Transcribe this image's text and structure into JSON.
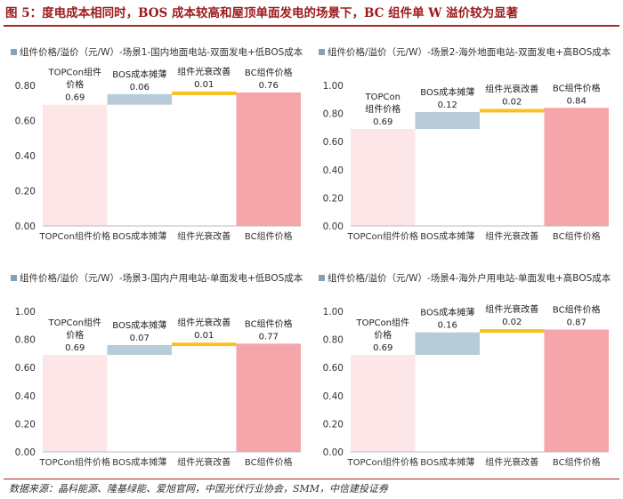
{
  "figure": {
    "title": "图 5：度电成本相同时，BOS 成本较高和屋顶单面发电的场景下，BC 组件单 W 溢价较为显著",
    "source": "数据来源：晶科能源、隆基绿能、爱旭官网，中国光伏行业协会，SMM，中信建投证券"
  },
  "colors": {
    "title_red": "#9b1b1b",
    "topcon_bar": "#fde6e8",
    "bos_bar": "#b7cbd8",
    "degradation_bar": "#f8c21e",
    "bc_bar": "#f6a6ab",
    "legend_marker": "#7fa3bd",
    "grid": "#dddddd"
  },
  "chart_data": [
    {
      "type": "bar",
      "subtype": "waterfall",
      "legend": "组件价格/溢价（元/W）-场景1-国内地面电站-双面发电+低BOS成本",
      "categories": [
        "TOPCon组件价格",
        "BOS成本摊薄",
        "组件光衰改善",
        "BC组件价格"
      ],
      "values": [
        0.69,
        0.06,
        0.01,
        0.76
      ],
      "bar_labels": [
        "TOPCon组件\n价格",
        "BOS成本摊薄",
        "组件光衰改善",
        "BC组件价格"
      ],
      "value_labels": [
        "0.69",
        "0.06",
        "0.01",
        "0.76"
      ],
      "ylim": [
        0,
        0.8
      ],
      "yticks": [
        "0.00",
        "0.20",
        "0.40",
        "0.60",
        "0.80"
      ],
      "grid": false
    },
    {
      "type": "bar",
      "subtype": "waterfall",
      "legend": "组件价格/溢价（元/W）-场景2-海外地面电站-双面发电+高BOS成本",
      "categories": [
        "TOPCon组件价格",
        "BOS成本摊薄",
        "组件光衰改善",
        "BC组件价格"
      ],
      "values": [
        0.69,
        0.12,
        0.02,
        0.84
      ],
      "bar_labels": [
        "TOPCon\n组件价格",
        "BOS成本摊薄",
        "组件光衰改善",
        "BC组件价格"
      ],
      "value_labels": [
        "0.69",
        "0.12",
        "0.02",
        "0.84"
      ],
      "ylim": [
        0,
        1.0
      ],
      "yticks": [
        "0.00",
        "0.20",
        "0.40",
        "0.60",
        "0.80",
        "1.00"
      ],
      "grid": false
    },
    {
      "type": "bar",
      "subtype": "waterfall",
      "legend": "组件价格/溢价（元/W）-场景3-国内户用电站-单面发电+低BOS成本",
      "categories": [
        "TOPCon组件价格",
        "BOS成本摊薄",
        "组件光衰改善",
        "BC组件价格"
      ],
      "values": [
        0.69,
        0.07,
        0.01,
        0.77
      ],
      "bar_labels": [
        "TOPCon组件\n价格",
        "BOS成本摊薄",
        "组件光衰改善",
        "BC组件价格"
      ],
      "value_labels": [
        "0.69",
        "0.07",
        "0.01",
        "0.77"
      ],
      "ylim": [
        0,
        1.0
      ],
      "yticks": [
        "0.00",
        "0.20",
        "0.40",
        "0.60",
        "0.80",
        "1.00"
      ],
      "grid": false
    },
    {
      "type": "bar",
      "subtype": "waterfall",
      "legend": "组件价格/溢价（元/W）-场景4-海外户用电站-单面发电+高BOS成本",
      "categories": [
        "TOPCon组件价格",
        "BOS成本摊薄",
        "组件光衰改善",
        "BC组件价格"
      ],
      "values": [
        0.69,
        0.16,
        0.02,
        0.87
      ],
      "bar_labels": [
        "TOPCon组件\n价格",
        "BOS成本摊薄",
        "组件光衰改善",
        "BC组件价格"
      ],
      "value_labels": [
        "0.69",
        "0.16",
        "0.02",
        "0.87"
      ],
      "ylim": [
        0,
        1.0
      ],
      "yticks": [
        "0.00",
        "0.20",
        "0.40",
        "0.60",
        "0.80",
        "1.00"
      ],
      "grid": false
    }
  ]
}
